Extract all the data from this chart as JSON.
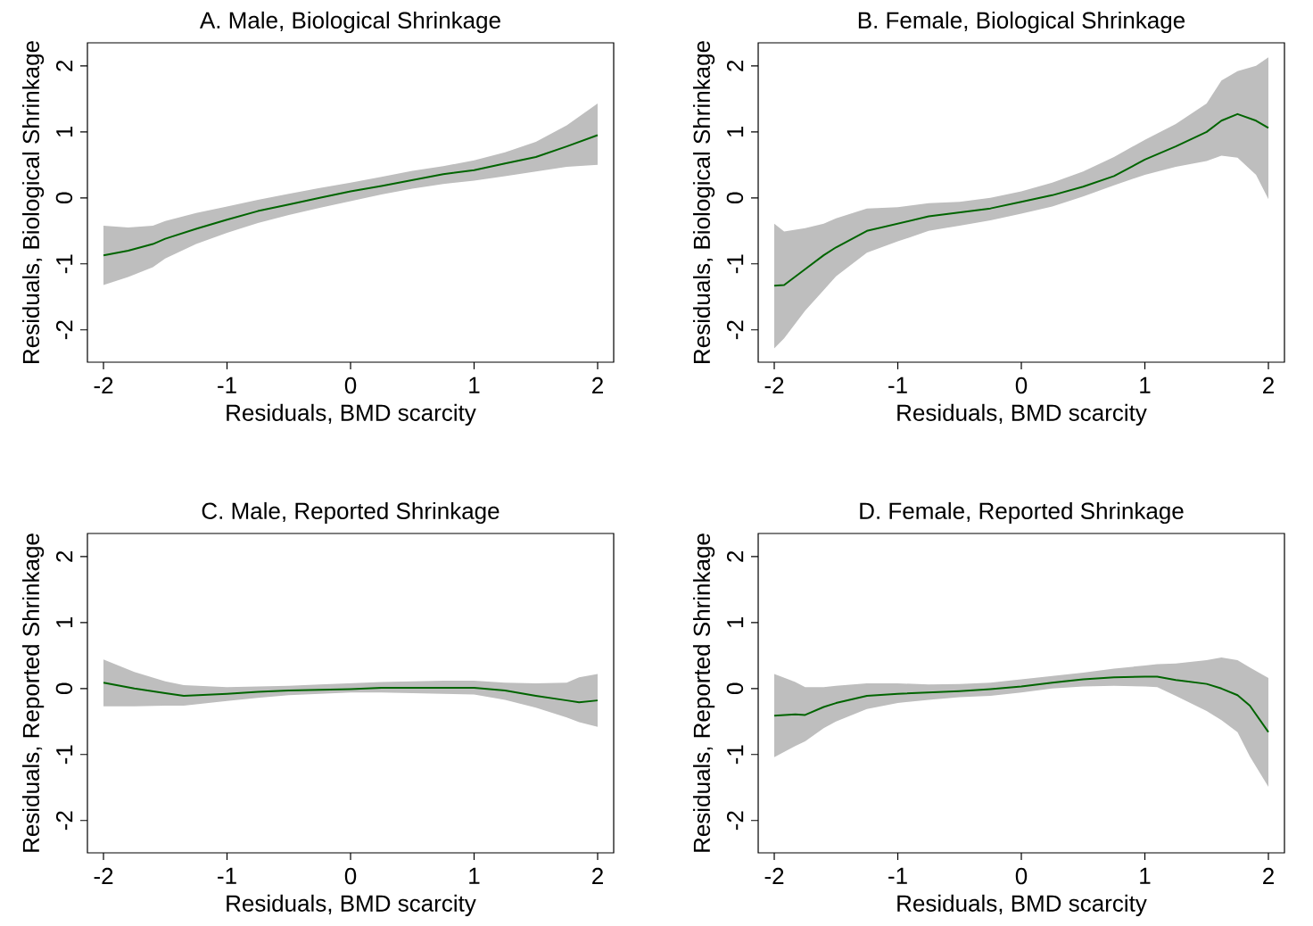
{
  "chart_data": [
    {
      "type": "line",
      "title": "A. Male, Biological Shrinkage",
      "xlabel": "Residuals, BMD scarcity",
      "ylabel": "Residuals, Biological Shrinkage",
      "xlim": [
        -2.13,
        2.13
      ],
      "ylim": [
        -2.49,
        2.35
      ],
      "xticks": [
        -2,
        -1,
        0,
        1,
        2
      ],
      "yticks": [
        -2,
        -1,
        0,
        1,
        2
      ],
      "series": [
        {
          "color": "#006400",
          "x": [
            -2,
            -1.8,
            -1.6,
            -1.5,
            -1.25,
            -1,
            -0.75,
            -0.5,
            -0.25,
            0,
            0.25,
            0.5,
            0.75,
            1,
            1.25,
            1.5,
            1.75,
            2
          ],
          "values": [
            -0.87,
            -0.8,
            -0.7,
            -0.62,
            -0.47,
            -0.33,
            -0.2,
            -0.1,
            0.0,
            0.1,
            0.18,
            0.27,
            0.36,
            0.42,
            0.52,
            0.62,
            0.78,
            0.95
          ],
          "upper": [
            -0.42,
            -0.45,
            -0.42,
            -0.35,
            -0.23,
            -0.13,
            -0.03,
            0.06,
            0.15,
            0.23,
            0.32,
            0.41,
            0.48,
            0.57,
            0.69,
            0.85,
            1.1,
            1.43
          ],
          "lower": [
            -1.32,
            -1.2,
            -1.05,
            -0.92,
            -0.7,
            -0.53,
            -0.38,
            -0.26,
            -0.15,
            -0.05,
            0.05,
            0.14,
            0.21,
            0.26,
            0.33,
            0.4,
            0.47,
            0.5
          ]
        }
      ]
    },
    {
      "type": "line",
      "title": "B. Female, Biological Shrinkage",
      "xlabel": "Residuals, BMD scarcity",
      "ylabel": "Residuals, Biological Shrinkage",
      "xlim": [
        -2.13,
        2.13
      ],
      "ylim": [
        -2.49,
        2.35
      ],
      "xticks": [
        -2,
        -1,
        0,
        1,
        2
      ],
      "yticks": [
        -2,
        -1,
        0,
        1,
        2
      ],
      "series": [
        {
          "color": "#006400",
          "x": [
            -2,
            -1.92,
            -1.75,
            -1.6,
            -1.5,
            -1.25,
            -1,
            -0.75,
            -0.5,
            -0.25,
            0,
            0.25,
            0.5,
            0.75,
            1,
            1.25,
            1.5,
            1.62,
            1.75,
            1.9,
            2
          ],
          "values": [
            -1.33,
            -1.32,
            -1.08,
            -0.87,
            -0.75,
            -0.5,
            -0.39,
            -0.28,
            -0.22,
            -0.16,
            -0.06,
            0.04,
            0.17,
            0.33,
            0.58,
            0.78,
            1.0,
            1.17,
            1.27,
            1.17,
            1.06
          ],
          "upper": [
            -0.39,
            -0.51,
            -0.46,
            -0.39,
            -0.31,
            -0.16,
            -0.14,
            -0.08,
            -0.06,
            0.0,
            0.1,
            0.23,
            0.4,
            0.62,
            0.88,
            1.12,
            1.43,
            1.78,
            1.92,
            2.0,
            2.13
          ],
          "lower": [
            -2.28,
            -2.13,
            -1.71,
            -1.4,
            -1.19,
            -0.83,
            -0.66,
            -0.5,
            -0.42,
            -0.34,
            -0.24,
            -0.13,
            0.02,
            0.19,
            0.35,
            0.47,
            0.56,
            0.64,
            0.61,
            0.35,
            -0.02
          ]
        }
      ]
    },
    {
      "type": "line",
      "title": "C. Male, Reported Shrinkage",
      "xlabel": "Residuals, BMD scarcity",
      "ylabel": "Residuals, Reported Shrinkage",
      "xlim": [
        -2.13,
        2.13
      ],
      "ylim": [
        -2.49,
        2.35
      ],
      "xticks": [
        -2,
        -1,
        0,
        1,
        2
      ],
      "yticks": [
        -2,
        -1,
        0,
        1,
        2
      ],
      "series": [
        {
          "color": "#006400",
          "x": [
            -2,
            -1.75,
            -1.5,
            -1.35,
            -1,
            -0.75,
            -0.5,
            -0.25,
            0,
            0.25,
            0.5,
            0.75,
            1,
            1.25,
            1.5,
            1.75,
            1.85,
            2
          ],
          "values": [
            0.09,
            0.0,
            -0.07,
            -0.11,
            -0.08,
            -0.05,
            -0.03,
            -0.02,
            -0.01,
            0.01,
            0.01,
            0.01,
            0.01,
            -0.03,
            -0.11,
            -0.18,
            -0.21,
            -0.18
          ],
          "upper": [
            0.44,
            0.25,
            0.11,
            0.05,
            0.02,
            0.03,
            0.04,
            0.06,
            0.08,
            0.1,
            0.11,
            0.12,
            0.12,
            0.09,
            0.08,
            0.09,
            0.17,
            0.22
          ],
          "lower": [
            -0.27,
            -0.27,
            -0.26,
            -0.26,
            -0.19,
            -0.14,
            -0.1,
            -0.08,
            -0.06,
            -0.06,
            -0.07,
            -0.08,
            -0.09,
            -0.17,
            -0.29,
            -0.44,
            -0.51,
            -0.58
          ]
        }
      ]
    },
    {
      "type": "line",
      "title": "D. Female, Reported Shrinkage",
      "xlabel": "Residuals, BMD scarcity",
      "ylabel": "Residuals, Reported Shrinkage",
      "xlim": [
        -2.13,
        2.13
      ],
      "ylim": [
        -2.49,
        2.35
      ],
      "xticks": [
        -2,
        -1,
        0,
        1,
        2
      ],
      "yticks": [
        -2,
        -1,
        0,
        1,
        2
      ],
      "series": [
        {
          "color": "#006400",
          "x": [
            -2,
            -1.83,
            -1.75,
            -1.6,
            -1.5,
            -1.25,
            -1,
            -0.75,
            -0.5,
            -0.25,
            0,
            0.25,
            0.5,
            0.75,
            1,
            1.1,
            1.25,
            1.5,
            1.62,
            1.75,
            1.85,
            2
          ],
          "values": [
            -0.41,
            -0.39,
            -0.4,
            -0.28,
            -0.22,
            -0.11,
            -0.08,
            -0.06,
            -0.04,
            -0.01,
            0.03,
            0.09,
            0.14,
            0.17,
            0.18,
            0.18,
            0.13,
            0.07,
            0.0,
            -0.1,
            -0.26,
            -0.66
          ],
          "upper": [
            0.22,
            0.1,
            0.02,
            0.02,
            0.04,
            0.08,
            0.08,
            0.06,
            0.07,
            0.09,
            0.14,
            0.19,
            0.24,
            0.3,
            0.35,
            0.37,
            0.38,
            0.43,
            0.47,
            0.43,
            0.32,
            0.16
          ],
          "lower": [
            -1.04,
            -0.87,
            -0.8,
            -0.6,
            -0.5,
            -0.31,
            -0.22,
            -0.17,
            -0.13,
            -0.11,
            -0.06,
            0.0,
            0.03,
            0.04,
            0.03,
            0.02,
            -0.11,
            -0.34,
            -0.48,
            -0.66,
            -1.03,
            -1.49
          ]
        }
      ]
    }
  ]
}
